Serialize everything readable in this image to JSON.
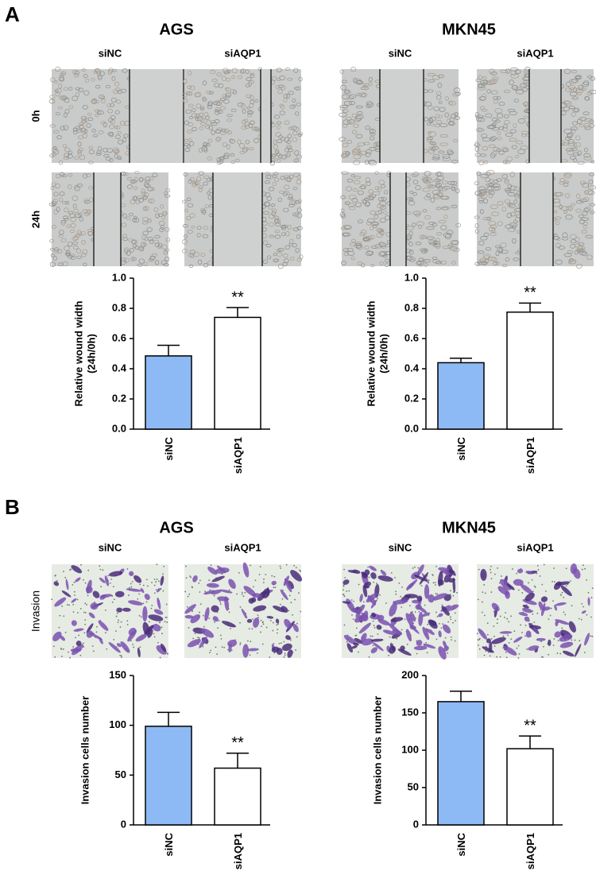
{
  "panels": [
    {
      "label": "A",
      "cell_lines": [
        {
          "name": "AGS",
          "conditions": [
            "siNC",
            "siAQP1"
          ]
        },
        {
          "name": "MKN45",
          "conditions": [
            "siNC",
            "siAQP1"
          ]
        }
      ],
      "rows": [
        "0h",
        "24h"
      ]
    },
    {
      "label": "B",
      "cell_lines": [
        {
          "name": "AGS",
          "conditions": [
            "siNC",
            "siAQP1"
          ]
        },
        {
          "name": "MKN45",
          "conditions": [
            "siNC",
            "siAQP1"
          ]
        }
      ],
      "rows": [
        "Invasion"
      ]
    }
  ],
  "chart_data": [
    {
      "type": "bar",
      "ylabel": [
        "Relative wound width",
        "(24h/0h)"
      ],
      "categories": [
        "siNC",
        "siAQP1"
      ],
      "values": [
        0.485,
        0.74
      ],
      "errors": [
        0.07,
        0.065
      ],
      "colors": [
        "#8dbaf5",
        "#ffffff"
      ],
      "significance": [
        null,
        "**"
      ],
      "ylim": [
        0,
        1
      ],
      "yticks": [
        {
          "value": 0,
          "label": "0.0"
        },
        0.2,
        0.4,
        0.6,
        0.8,
        {
          "value": 1,
          "label": "1.0"
        }
      ]
    },
    {
      "type": "bar",
      "ylabel": [
        "Relative wound width",
        "(24h/0h)"
      ],
      "categories": [
        "siNC",
        "siAQP1"
      ],
      "values": [
        0.44,
        0.775
      ],
      "errors": [
        0.03,
        0.06
      ],
      "colors": [
        "#8dbaf5",
        "#ffffff"
      ],
      "significance": [
        null,
        "**"
      ],
      "ylim": [
        0,
        1
      ],
      "yticks": [
        {
          "value": 0,
          "label": "0.0"
        },
        0.2,
        0.4,
        0.6,
        0.8,
        {
          "value": 1,
          "label": "1.0"
        }
      ]
    },
    {
      "type": "bar",
      "ylabel": [
        "Invasion cells number"
      ],
      "categories": [
        "siNC",
        "siAQP1"
      ],
      "values": [
        99,
        57
      ],
      "errors": [
        14,
        15
      ],
      "colors": [
        "#8dbaf5",
        "#ffffff"
      ],
      "significance": [
        null,
        "**"
      ],
      "ylim": [
        0,
        150
      ],
      "yticks": [
        0,
        50,
        100,
        150
      ]
    },
    {
      "type": "bar",
      "ylabel": [
        "Invasion cells number"
      ],
      "categories": [
        "siNC",
        "siAQP1"
      ],
      "values": [
        165,
        102
      ],
      "errors": [
        14,
        17
      ],
      "colors": [
        "#8dbaf5",
        "#ffffff"
      ],
      "significance": [
        null,
        "**"
      ],
      "ylim": [
        0,
        200
      ],
      "yticks": [
        0,
        50,
        100,
        150,
        200
      ]
    }
  ]
}
